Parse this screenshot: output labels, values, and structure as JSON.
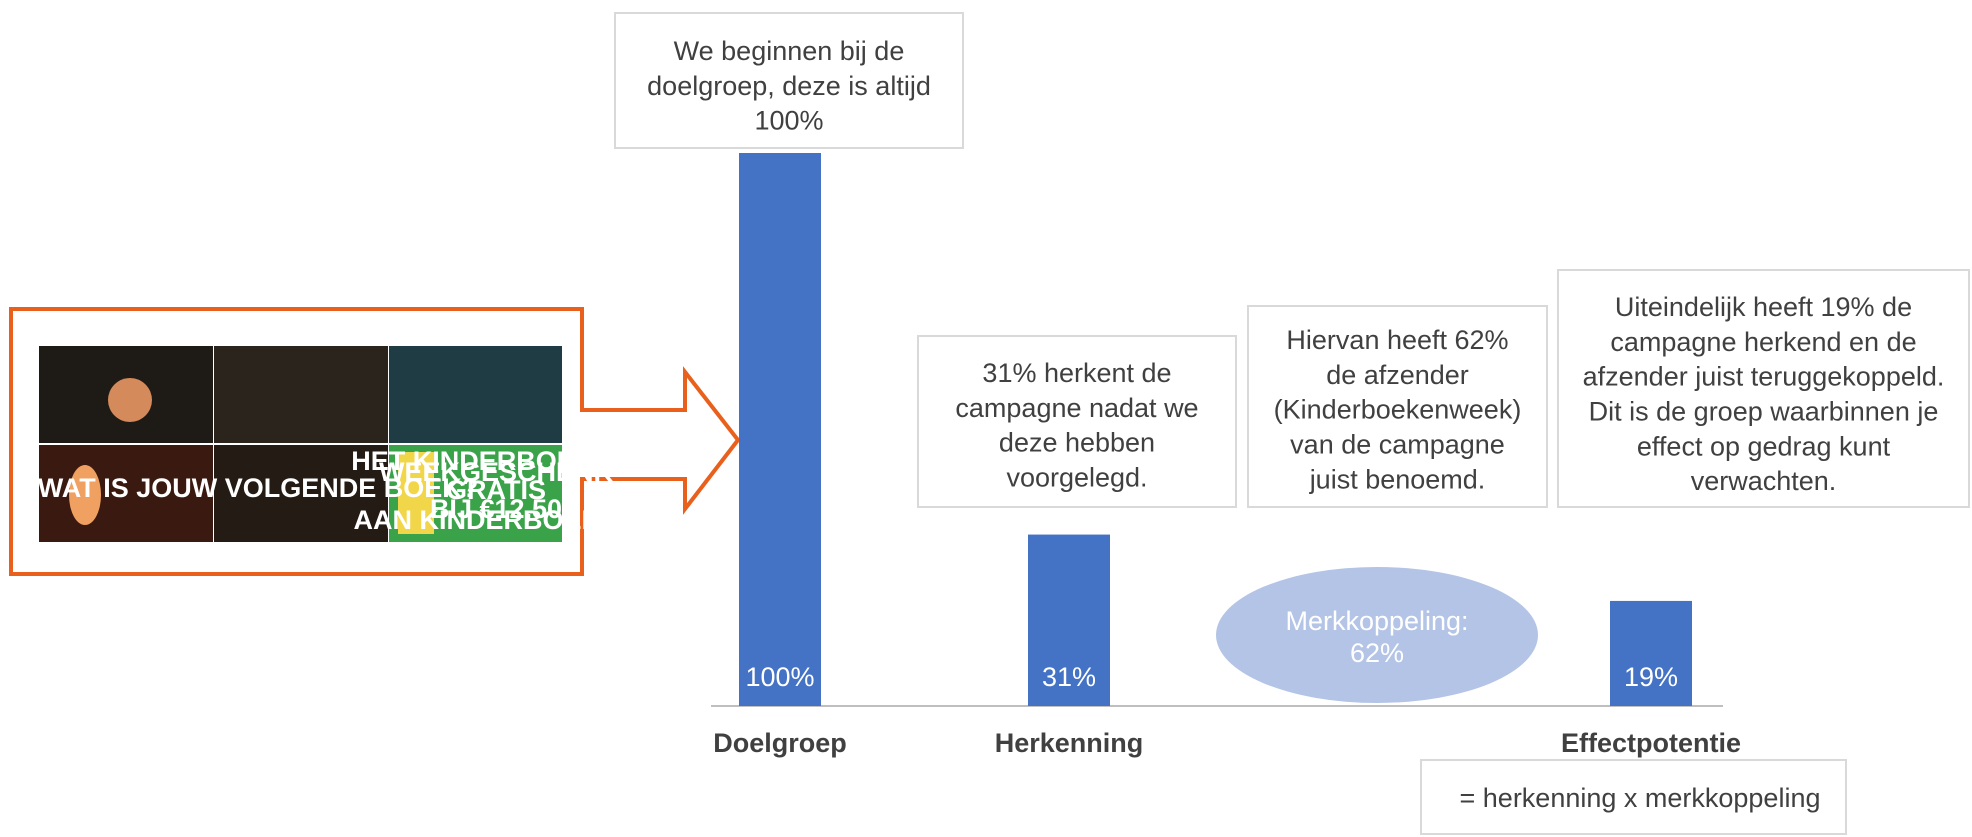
{
  "chart_data": {
    "type": "bar",
    "categories": [
      "Doelgroep",
      "Herkenning",
      null,
      "Effectpotentie"
    ],
    "values": [
      100,
      31,
      null,
      19
    ],
    "value_labels": [
      "100%",
      "31%",
      null,
      "19%"
    ],
    "color": "#4472c4",
    "ylim": [
      0,
      100
    ],
    "annotations": [
      [
        "We beginnen bij de",
        "doelgroep, deze is altijd",
        "100%"
      ],
      [
        "31% herkent de",
        "campagne nadat we",
        "deze hebben",
        "voorgelegd."
      ],
      [
        "Hiervan heeft 62%",
        "de afzender",
        "(Kinderboekenweek)",
        "van de campagne",
        "juist benoemd."
      ],
      [
        "Uiteindelijk heeft 19% de",
        "campagne herkend en de",
        "afzender juist teruggekoppeld.",
        "Dit is de groep waarbinnen je",
        "effect op gedrag kunt",
        "verwachten."
      ]
    ],
    "bubble": [
      "Merkkoppeling:",
      "62%"
    ],
    "footnote": "= herkenning x merkkoppeling"
  },
  "thumbnail": {
    "texts": [
      "WAT IS JOUW VOLGENDE BOEK?",
      "HET KINDERBOEKEN-",
      "WEEKGESCHENK",
      "GRATIS",
      "BIJ €12,50",
      "AAN KINDERBOEKEN"
    ]
  }
}
